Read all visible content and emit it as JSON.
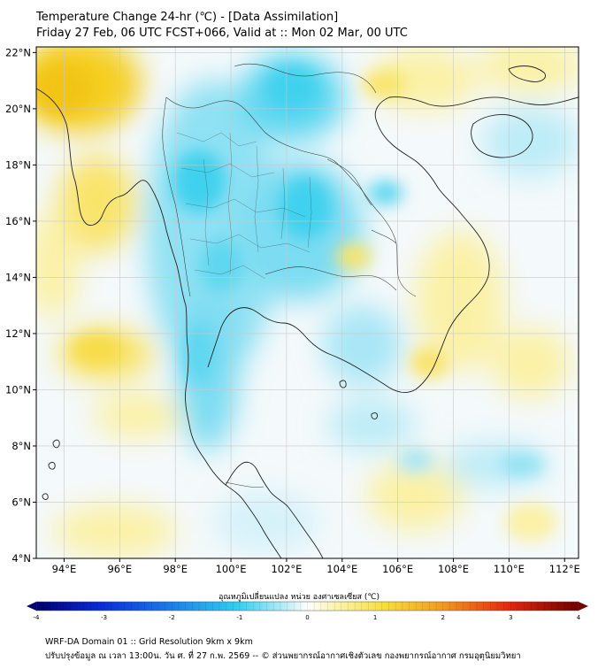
{
  "header": {
    "title_line1": "Temperature Change 24-hr (℃) - [Data Assimilation]",
    "title_line2": "Friday 27 Feb, 06 UTC FCST+066, Valid at :: Mon 02 Mar, 00 UTC"
  },
  "map": {
    "lat_labels": [
      "22°N",
      "20°N",
      "18°N",
      "16°N",
      "14°N",
      "12°N",
      "10°N",
      "8°N",
      "6°N",
      "4°N"
    ],
    "lon_labels": [
      "94°E",
      "96°E",
      "98°E",
      "100°E",
      "102°E",
      "104°E",
      "106°E",
      "108°E",
      "110°E",
      "112°E"
    ],
    "lat_values": [
      22,
      20,
      18,
      16,
      14,
      12,
      10,
      8,
      6,
      4
    ],
    "lon_values": [
      94,
      96,
      98,
      100,
      102,
      104,
      106,
      108,
      110,
      112
    ],
    "extent": {
      "lon_min": 93,
      "lon_max": 112.5,
      "lat_min": 4,
      "lat_max": 22.2
    }
  },
  "colorbar": {
    "title": "อุณหภูมิเปลี่ยนแปลง หน่วย องศาเซลเซียส (℃)",
    "ticks": [
      "-4",
      "-3",
      "-2",
      "-1",
      "0",
      "1",
      "2",
      "3",
      "4"
    ],
    "tick_values": [
      -4,
      -3,
      -2,
      -1,
      0,
      1,
      2,
      3,
      4
    ],
    "range": [
      -4,
      4
    ]
  },
  "footer": {
    "line1": "WRF-DA Domain 01 :: Grid Resolution 9km x 9km",
    "line2": "ปรับปรุงข้อมูล ณ เวลา 13:00น. วัน ศ. ที่ 27 ก.พ. 2569 -- © ส่วนพยากรณ์อากาศเชิงตัวเลข กองพยากรณ์อากาศ กรมอุตุนิยมวิทยา"
  },
  "colors": {
    "warm": "#f5d428",
    "warm_light": "#fbf1a6",
    "cool": "#2ed6ee",
    "cool_light": "#bdecf7",
    "neutral": "#f7fbfc",
    "coast": "#222222",
    "grid": "#c8c8c8"
  }
}
